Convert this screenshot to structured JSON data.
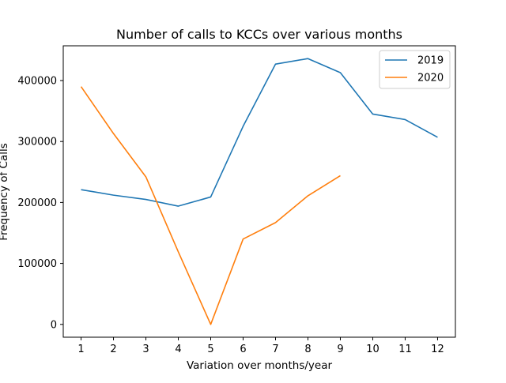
{
  "chart_data": {
    "type": "line",
    "title": "Number of calls to KCCs over various months",
    "xlabel": "Variation over months/year",
    "ylabel": "Frequency of Calls",
    "x_ticks": [
      "1",
      "2",
      "3",
      "4",
      "5",
      "6",
      "7",
      "8",
      "9",
      "10",
      "11",
      "12"
    ],
    "y_ticks": [
      "0",
      "100000",
      "200000",
      "300000",
      "400000"
    ],
    "xlim": [
      0.45,
      12.55
    ],
    "ylim": [
      -21000,
      457000
    ],
    "legend_position": "top-right",
    "grid": false,
    "series": [
      {
        "name": "2019",
        "color": "#1f77b4",
        "x": [
          1,
          2,
          3,
          4,
          5,
          6,
          7,
          8,
          9,
          10,
          11,
          12
        ],
        "y": [
          221000,
          212000,
          205000,
          194000,
          209000,
          325000,
          427000,
          436000,
          413000,
          345000,
          336000,
          307000
        ]
      },
      {
        "name": "2020",
        "color": "#ff7f0e",
        "x": [
          1,
          2,
          3,
          4,
          5,
          6,
          7,
          8,
          9
        ],
        "y": [
          390000,
          313000,
          242000,
          119000,
          0,
          140000,
          167000,
          211000,
          244000
        ]
      }
    ]
  }
}
